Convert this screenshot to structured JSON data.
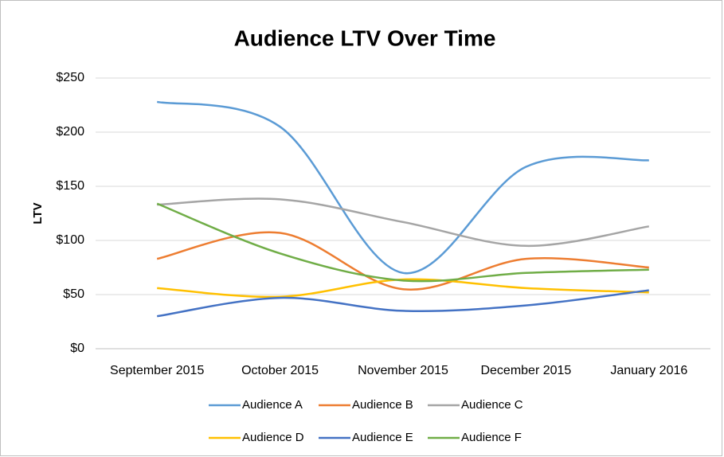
{
  "chart_data": {
    "type": "line",
    "title": "Audience LTV Over Time",
    "y_label": "LTV",
    "categories": [
      "September 2015",
      "October 2015",
      "November 2015",
      "December 2015",
      "January 2016"
    ],
    "series": [
      {
        "name": "Audience A",
        "color": "#5b9bd5",
        "values": [
          228,
          205,
          70,
          168,
          174
        ]
      },
      {
        "name": "Audience B",
        "color": "#ed7d31",
        "values": [
          83,
          107,
          55,
          83,
          75
        ]
      },
      {
        "name": "Audience C",
        "color": "#a5a5a5",
        "values": [
          133,
          138,
          117,
          95,
          113
        ]
      },
      {
        "name": "Audience D",
        "color": "#ffc000",
        "values": [
          56,
          48,
          64,
          56,
          52
        ]
      },
      {
        "name": "Audience E",
        "color": "#4472c4",
        "values": [
          30,
          47,
          35,
          40,
          54
        ]
      },
      {
        "name": "Audience F",
        "color": "#70ad47",
        "values": [
          134,
          88,
          63,
          70,
          73
        ]
      }
    ],
    "ylim": [
      0,
      250
    ],
    "yticks": [
      {
        "value": 0,
        "label": "$0"
      },
      {
        "value": 50,
        "label": "$50"
      },
      {
        "value": 100,
        "label": "$100"
      },
      {
        "value": 150,
        "label": "$150"
      },
      {
        "value": 200,
        "label": "$200"
      },
      {
        "value": 250,
        "label": "$250"
      }
    ],
    "grid": true,
    "smooth": true,
    "legend": "bottom"
  }
}
